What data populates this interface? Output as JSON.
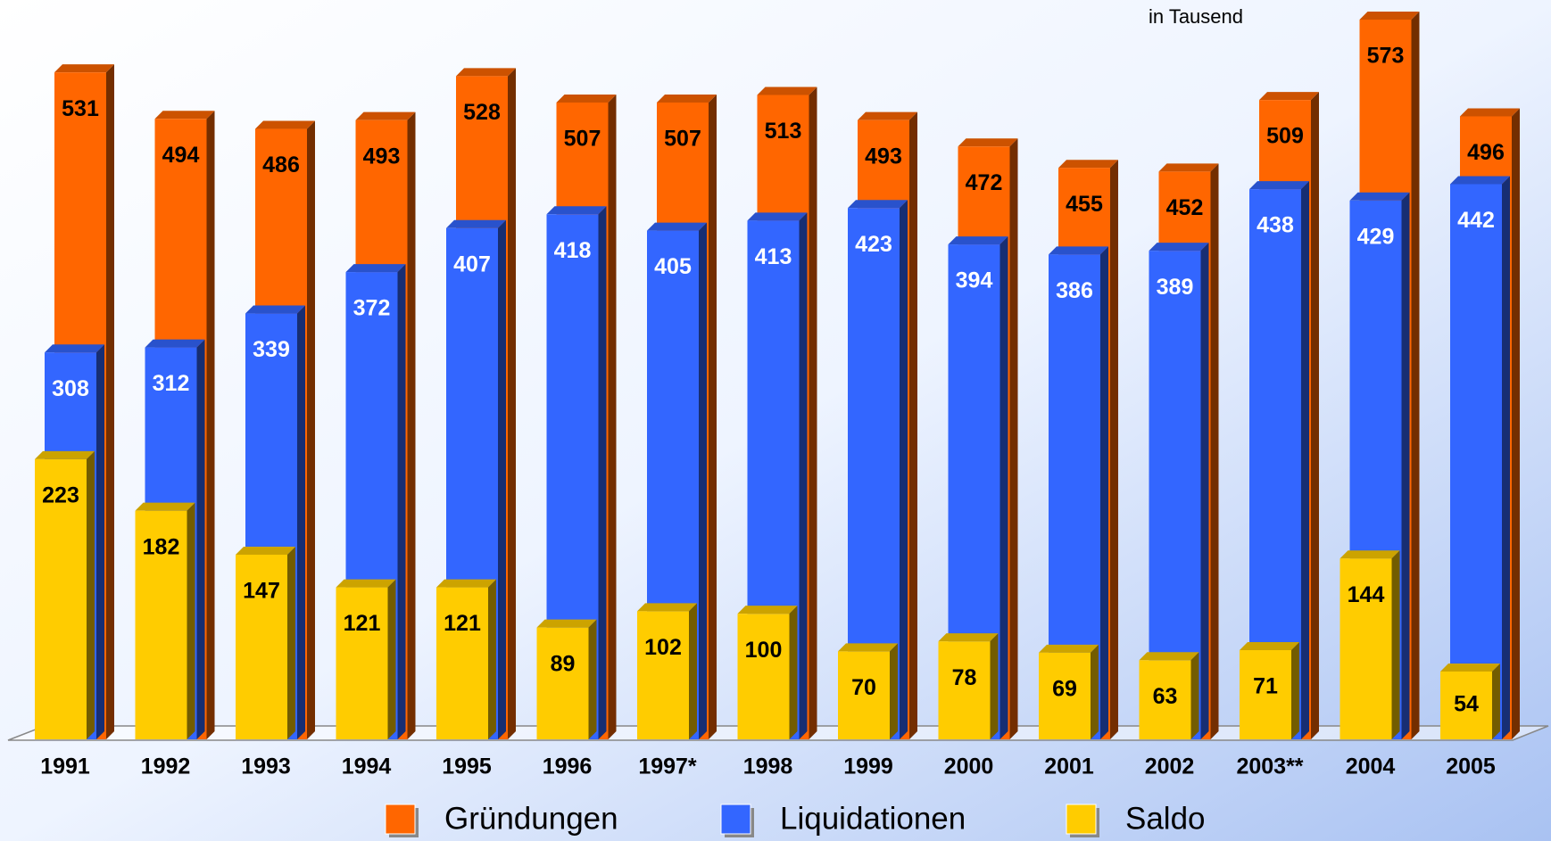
{
  "chart_data": {
    "type": "bar3d",
    "subtitle": "in Tausend",
    "categories": [
      "1991",
      "1992",
      "1993",
      "1994",
      "1995",
      "1996",
      "1997*",
      "1998",
      "1999",
      "2000",
      "2001",
      "2002",
      "2003**",
      "2004",
      "2005"
    ],
    "series": [
      {
        "name": "Gründungen",
        "color": "#ff6600",
        "label_color": "#000000",
        "values": [
          531,
          494,
          486,
          493,
          528,
          507,
          507,
          513,
          493,
          472,
          455,
          452,
          509,
          573,
          496
        ]
      },
      {
        "name": "Liquidationen",
        "color": "#3366ff",
        "label_color": "#ffffff",
        "values": [
          308,
          312,
          339,
          372,
          407,
          418,
          405,
          413,
          423,
          394,
          386,
          389,
          438,
          429,
          442
        ]
      },
      {
        "name": "Saldo",
        "color": "#ffcc00",
        "label_color": "#000000",
        "values": [
          223,
          182,
          147,
          121,
          121,
          89,
          102,
          100,
          70,
          78,
          69,
          63,
          71,
          144,
          54
        ]
      }
    ]
  }
}
